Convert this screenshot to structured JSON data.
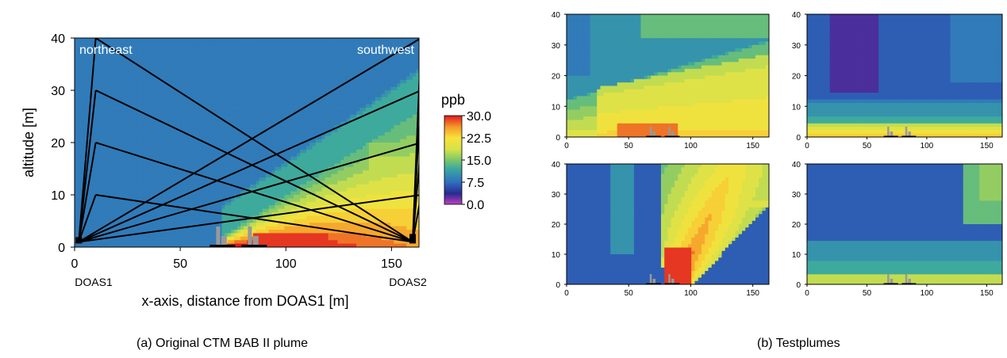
{
  "captions": {
    "left": "(a) Original CTM BAB II plume",
    "right": "(b) Testplumes"
  },
  "chart_data": [
    {
      "id": "original-plume",
      "type": "heatmap",
      "title": "",
      "xlabel": "x-axis, distance from DOAS1 [m]",
      "ylabel": "altitude [m]",
      "xlim": [
        0,
        163
      ],
      "ylim": [
        0,
        40
      ],
      "xticks": [
        0,
        50,
        100,
        150
      ],
      "yticks": [
        0,
        10,
        20,
        30,
        40
      ],
      "annotations": {
        "top_left": "northeast",
        "top_right": "southwest",
        "below_left": "DOAS1",
        "below_right": "DOAS2"
      },
      "colorbar": {
        "unit": "ppb",
        "ticks": [
          "30.0",
          "22.5",
          "15.0",
          "7.5",
          "0.0"
        ],
        "range": [
          0,
          30
        ]
      },
      "plume": {
        "source_x": 88,
        "background_ppb": 8,
        "peak_ppb": 30,
        "spread": "downwind-right"
      },
      "light_paths": {
        "doas1": {
          "x": 2,
          "y": 1
        },
        "doas2": {
          "x": 160,
          "y": 1
        },
        "reflectors_near_doas1": [
          {
            "x": 10,
            "y": 10
          },
          {
            "x": 10,
            "y": 20
          },
          {
            "x": 10,
            "y": 30
          },
          {
            "x": 10,
            "y": 40
          }
        ],
        "reflectors_near_doas2": [
          {
            "x": 164,
            "y": 10
          },
          {
            "x": 164,
            "y": 20
          },
          {
            "x": 164,
            "y": 30
          },
          {
            "x": 164,
            "y": 40
          }
        ]
      },
      "buildings": [
        {
          "x_start": 64,
          "x_end": 76
        },
        {
          "x_start": 79,
          "x_end": 91
        }
      ]
    },
    {
      "id": "testplume-1",
      "type": "heatmap",
      "xlim": [
        0,
        163
      ],
      "ylim": [
        0,
        40
      ],
      "xticks": [
        0,
        50,
        100,
        150
      ],
      "yticks": [
        0,
        10,
        20,
        30,
        40
      ],
      "description_values": {
        "background_ppb": 10,
        "plume": "ground layer wide, peak near x=50"
      }
    },
    {
      "id": "testplume-2",
      "type": "heatmap",
      "xlim": [
        0,
        163
      ],
      "ylim": [
        0,
        40
      ],
      "xticks": [
        0,
        50,
        100,
        150
      ],
      "yticks": [
        0,
        10,
        20,
        30,
        40
      ],
      "description_values": {
        "background_ppb": 6,
        "plume": "thin ground layer, low column near x=40"
      }
    },
    {
      "id": "testplume-3",
      "type": "heatmap",
      "xlim": [
        0,
        163
      ],
      "ylim": [
        0,
        40
      ],
      "xticks": [
        0,
        50,
        100,
        150
      ],
      "yticks": [
        0,
        10,
        20,
        30,
        40
      ],
      "description_values": {
        "background_ppb": 7,
        "plume": "vertical column rising from x=90"
      }
    },
    {
      "id": "testplume-4",
      "type": "heatmap",
      "xlim": [
        0,
        163
      ],
      "ylim": [
        0,
        40
      ],
      "xticks": [
        0,
        50,
        100,
        150
      ],
      "yticks": [
        0,
        10,
        20,
        30,
        40
      ],
      "description_values": {
        "background_ppb": 7,
        "plume": "horizontal layers, low right region"
      }
    }
  ]
}
